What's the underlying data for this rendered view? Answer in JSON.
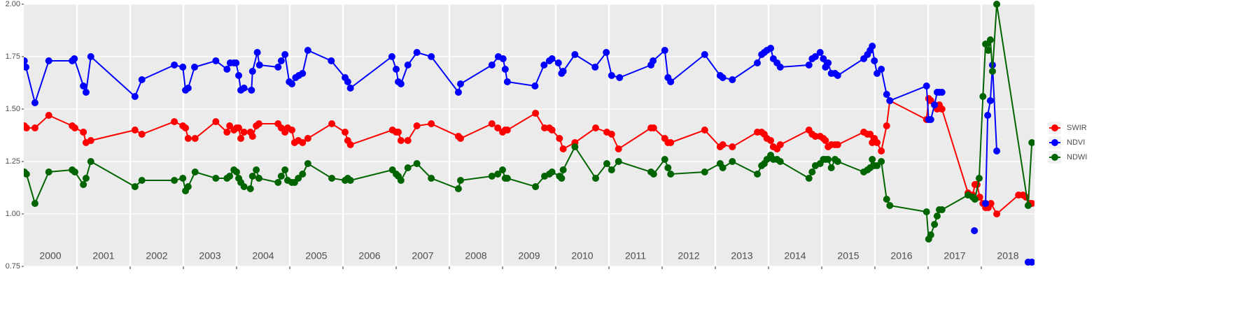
{
  "chart_data": {
    "type": "line",
    "xlim": [
      2000,
      2019
    ],
    "ylim": [
      0.75,
      2.0
    ],
    "yticks": [
      {
        "value": 0.75,
        "label": "0.75"
      },
      {
        "value": 1.0,
        "label": "1.00"
      },
      {
        "value": 1.25,
        "label": "1.25"
      },
      {
        "value": 1.5,
        "label": "1.50"
      },
      {
        "value": 1.75,
        "label": "1.75"
      },
      {
        "value": 2.0,
        "label": "2.00"
      }
    ],
    "year_labels": [
      2000,
      2001,
      2002,
      2003,
      2004,
      2005,
      2006,
      2007,
      2008,
      2009,
      2010,
      2011,
      2012,
      2013,
      2014,
      2015,
      2016,
      2017,
      2018
    ],
    "grid": true,
    "legend": "right",
    "series": [
      {
        "name": "SWIR",
        "color": "#ff0000",
        "x": [
          2000.01,
          2000.05,
          2000.21,
          2000.47,
          2000.91,
          2000.96,
          2001.12,
          2001.17,
          2001.26,
          2002.09,
          2002.22,
          2002.83,
          2002.99,
          2003.04,
          2003.09,
          2003.22,
          2003.61,
          2003.82,
          2003.87,
          2003.95,
          2004.0,
          2004.04,
          2004.08,
          2004.14,
          2004.26,
          2004.3,
          2004.37,
          2004.42,
          2004.78,
          2004.84,
          2004.91,
          2004.96,
          2005.04,
          2005.09,
          2005.16,
          2005.24,
          2005.34,
          2005.79,
          2006.04,
          2006.09,
          2006.14,
          2006.93,
          2007.0,
          2007.04,
          2007.09,
          2007.22,
          2007.39,
          2007.66,
          2008.17,
          2008.21,
          2008.8,
          2008.91,
          2009.0,
          2009.05,
          2009.09,
          2009.62,
          2009.79,
          2009.88,
          2009.93,
          2010.07,
          2010.14,
          2010.36,
          2010.75,
          2010.96,
          2011.05,
          2011.18,
          2011.79,
          2011.84,
          2012.05,
          2012.11,
          2012.16,
          2012.8,
          2013.09,
          2013.14,
          2013.32,
          2013.79,
          2013.87,
          2013.92,
          2013.97,
          2014.04,
          2014.09,
          2014.16,
          2014.22,
          2014.76,
          2014.82,
          2014.88,
          2014.97,
          2015.03,
          2015.07,
          2015.12,
          2015.18,
          2015.25,
          2015.3,
          2015.79,
          2015.86,
          2015.91,
          2015.95,
          2015.99,
          2016.04,
          2016.12,
          2016.22,
          2016.28,
          2016.97,
          2017.01,
          2017.05,
          2017.12,
          2017.17,
          2017.21,
          2017.26,
          2017.75,
          2017.84,
          2017.88,
          2017.92,
          2017.97,
          2018.03,
          2018.08,
          2018.13,
          2018.18,
          2018.29,
          2018.7,
          2018.78,
          2018.84,
          2018.91,
          2018.95
        ],
        "values": [
          1.42,
          1.41,
          1.41,
          1.47,
          1.42,
          1.41,
          1.39,
          1.34,
          1.35,
          1.4,
          1.38,
          1.44,
          1.42,
          1.41,
          1.36,
          1.36,
          1.44,
          1.39,
          1.42,
          1.4,
          1.41,
          1.41,
          1.36,
          1.39,
          1.39,
          1.37,
          1.42,
          1.43,
          1.43,
          1.41,
          1.39,
          1.41,
          1.4,
          1.34,
          1.35,
          1.34,
          1.36,
          1.43,
          1.39,
          1.35,
          1.33,
          1.4,
          1.39,
          1.39,
          1.35,
          1.35,
          1.42,
          1.43,
          1.37,
          1.36,
          1.43,
          1.41,
          1.39,
          1.4,
          1.4,
          1.48,
          1.41,
          1.41,
          1.4,
          1.36,
          1.31,
          1.34,
          1.41,
          1.39,
          1.38,
          1.31,
          1.41,
          1.41,
          1.36,
          1.34,
          1.34,
          1.4,
          1.32,
          1.33,
          1.32,
          1.39,
          1.39,
          1.38,
          1.36,
          1.35,
          1.32,
          1.31,
          1.33,
          1.4,
          1.38,
          1.37,
          1.37,
          1.36,
          1.35,
          1.32,
          1.33,
          1.33,
          1.33,
          1.39,
          1.38,
          1.38,
          1.34,
          1.36,
          1.34,
          1.3,
          1.42,
          1.54,
          1.45,
          1.55,
          1.54,
          1.52,
          1.5,
          1.52,
          1.5,
          1.1,
          1.09,
          1.14,
          1.14,
          1.08,
          1.05,
          1.03,
          1.03,
          1.05,
          1.0,
          1.09,
          1.09,
          1.08,
          1.05,
          1.05
        ]
      },
      {
        "name": "NDVI",
        "color": "#0000ff",
        "x": [
          2000.01,
          2000.04,
          2000.21,
          2000.47,
          2000.91,
          2000.95,
          2001.12,
          2001.17,
          2001.26,
          2002.09,
          2002.22,
          2002.83,
          2002.99,
          2003.04,
          2003.09,
          2003.21,
          2003.61,
          2003.82,
          2003.88,
          2003.95,
          2003.99,
          2004.04,
          2004.08,
          2004.14,
          2004.28,
          2004.3,
          2004.39,
          2004.43,
          2004.78,
          2004.84,
          2004.91,
          2004.99,
          2005.04,
          2005.11,
          2005.17,
          2005.24,
          2005.34,
          2005.78,
          2006.04,
          2006.09,
          2006.14,
          2006.92,
          2007.0,
          2007.04,
          2007.09,
          2007.22,
          2007.39,
          2007.66,
          2008.17,
          2008.21,
          2008.8,
          2008.92,
          2009.01,
          2009.05,
          2009.09,
          2009.61,
          2009.78,
          2009.88,
          2009.93,
          2010.05,
          2010.11,
          2010.14,
          2010.36,
          2010.74,
          2010.95,
          2011.05,
          2011.2,
          2011.79,
          2011.83,
          2012.05,
          2012.11,
          2012.16,
          2012.8,
          2013.09,
          2013.14,
          2013.32,
          2013.79,
          2013.87,
          2013.92,
          2013.97,
          2014.04,
          2014.09,
          2014.16,
          2014.22,
          2014.76,
          2014.82,
          2014.88,
          2014.97,
          2015.03,
          2015.07,
          2015.12,
          2015.18,
          2015.25,
          2015.3,
          2015.79,
          2015.86,
          2015.91,
          2015.95,
          2015.99,
          2016.04,
          2016.12,
          2016.22,
          2016.28,
          2016.97,
          2017.01,
          2017.05,
          2017.12,
          2017.17,
          2017.21,
          2017.26,
          null,
          2017.87,
          null,
          2018.08,
          2018.12,
          2018.17,
          2018.21,
          2018.29,
          null,
          2018.88,
          2018.95
        ],
        "values": [
          1.73,
          1.7,
          1.53,
          1.73,
          1.73,
          1.74,
          1.61,
          1.58,
          1.75,
          1.56,
          1.64,
          1.71,
          1.7,
          1.59,
          1.6,
          1.7,
          1.73,
          1.69,
          1.72,
          1.72,
          1.72,
          1.66,
          1.59,
          1.6,
          1.59,
          1.68,
          1.77,
          1.71,
          1.7,
          1.73,
          1.76,
          1.63,
          1.62,
          1.65,
          1.66,
          1.67,
          1.78,
          1.73,
          1.65,
          1.63,
          1.6,
          1.75,
          1.69,
          1.63,
          1.62,
          1.71,
          1.77,
          1.75,
          1.58,
          1.62,
          1.71,
          1.75,
          1.74,
          1.69,
          1.63,
          1.61,
          1.71,
          1.73,
          1.74,
          1.72,
          1.67,
          1.68,
          1.76,
          1.7,
          1.77,
          1.66,
          1.65,
          1.71,
          1.73,
          1.78,
          1.65,
          1.63,
          1.76,
          1.66,
          1.65,
          1.64,
          1.72,
          1.76,
          1.77,
          1.78,
          1.79,
          1.74,
          1.72,
          1.7,
          1.71,
          1.74,
          1.75,
          1.77,
          1.74,
          1.7,
          1.72,
          1.67,
          1.67,
          1.66,
          1.74,
          1.76,
          1.78,
          1.8,
          1.73,
          1.67,
          1.69,
          1.57,
          1.54,
          1.61,
          1.45,
          1.45,
          1.52,
          1.58,
          1.58,
          1.58,
          null,
          0.92,
          null,
          1.05,
          1.47,
          1.54,
          1.71,
          1.3,
          null,
          0.77,
          0.77
        ]
      },
      {
        "name": "NDWI",
        "color": "#006400",
        "x": [
          2000.01,
          2000.05,
          2000.21,
          2000.47,
          2000.91,
          2000.96,
          2001.12,
          2001.17,
          2001.26,
          2002.09,
          2002.22,
          2002.83,
          2002.99,
          2003.04,
          2003.09,
          2003.22,
          2003.61,
          2003.82,
          2003.87,
          2003.95,
          2004.0,
          2004.04,
          2004.08,
          2004.14,
          2004.26,
          2004.3,
          2004.37,
          2004.42,
          2004.78,
          2004.84,
          2004.91,
          2004.96,
          2005.04,
          2005.09,
          2005.16,
          2005.24,
          2005.34,
          2005.79,
          2006.04,
          2006.09,
          2006.14,
          2006.93,
          2007.0,
          2007.04,
          2007.09,
          2007.22,
          2007.39,
          2007.66,
          2008.17,
          2008.21,
          2008.8,
          2008.91,
          2009.0,
          2009.05,
          2009.09,
          2009.62,
          2009.79,
          2009.88,
          2009.93,
          2010.07,
          2010.11,
          2010.14,
          2010.36,
          2010.75,
          2010.96,
          2011.05,
          2011.18,
          2011.79,
          2011.84,
          2012.05,
          2012.11,
          2012.16,
          2012.8,
          2013.09,
          2013.14,
          2013.32,
          2013.79,
          2013.87,
          2013.92,
          2013.97,
          2014.04,
          2014.09,
          2014.16,
          2014.22,
          2014.76,
          2014.82,
          2014.88,
          2014.97,
          2015.03,
          2015.07,
          2015.12,
          2015.18,
          2015.25,
          2015.3,
          2015.79,
          2015.86,
          2015.91,
          2015.95,
          2015.99,
          2016.04,
          2016.12,
          2016.22,
          2016.28,
          2016.97,
          2017.01,
          2017.05,
          2017.12,
          2017.17,
          2017.21,
          2017.26,
          2017.75,
          2017.84,
          2017.88,
          2017.96,
          2018.03,
          2018.08,
          2018.13,
          2018.17,
          2018.21,
          2018.29,
          2018.88,
          2018.95
        ],
        "values": [
          1.2,
          1.19,
          1.05,
          1.2,
          1.21,
          1.2,
          1.14,
          1.17,
          1.25,
          1.13,
          1.16,
          1.16,
          1.17,
          1.11,
          1.13,
          1.2,
          1.17,
          1.17,
          1.18,
          1.21,
          1.2,
          1.17,
          1.15,
          1.13,
          1.12,
          1.18,
          1.21,
          1.17,
          1.15,
          1.18,
          1.21,
          1.16,
          1.15,
          1.15,
          1.17,
          1.19,
          1.24,
          1.17,
          1.16,
          1.17,
          1.16,
          1.21,
          1.19,
          1.18,
          1.16,
          1.22,
          1.24,
          1.17,
          1.12,
          1.16,
          1.18,
          1.19,
          1.21,
          1.17,
          1.17,
          1.13,
          1.18,
          1.19,
          1.2,
          1.18,
          1.17,
          1.21,
          1.32,
          1.17,
          1.24,
          1.21,
          1.25,
          1.2,
          1.19,
          1.26,
          1.22,
          1.19,
          1.2,
          1.24,
          1.22,
          1.25,
          1.19,
          1.23,
          1.24,
          1.26,
          1.28,
          1.26,
          1.26,
          1.25,
          1.17,
          1.2,
          1.23,
          1.24,
          1.26,
          1.26,
          1.26,
          1.22,
          1.26,
          1.25,
          1.2,
          1.21,
          1.22,
          1.26,
          1.23,
          1.23,
          1.25,
          1.07,
          1.04,
          1.01,
          0.88,
          0.9,
          0.95,
          0.99,
          1.02,
          1.02,
          1.09,
          1.08,
          1.07,
          1.17,
          1.56,
          1.81,
          1.78,
          1.83,
          1.68,
          2.0,
          1.04,
          1.34
        ]
      }
    ]
  }
}
